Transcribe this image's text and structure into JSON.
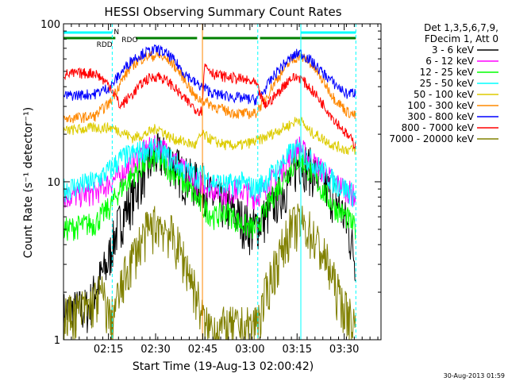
{
  "chart_data": {
    "type": "line",
    "title": "HESSI Observing Summary Count Rates",
    "xlabel": "Start Time (19-Aug-13 02:00:42)",
    "ylabel": "Count Rate (s⁻¹ detector⁻¹)",
    "x_range_minutes": [
      0,
      101
    ],
    "x_tick_labels": [
      "02:15",
      "02:30",
      "02:45",
      "03:00",
      "03:15",
      "03:30"
    ],
    "x_tick_minutes": [
      14.3,
      29.3,
      44.3,
      59.3,
      74.3,
      89.3
    ],
    "y_scale": "log",
    "ylim": [
      1,
      100
    ],
    "y_tick_labels": [
      "1",
      "10",
      "100"
    ],
    "legend_position": "right",
    "legend_header": [
      "Det 1,3,5,6,7,9,",
      "FDecim 1, Att 0"
    ],
    "series": [
      {
        "name": "3 - 6 keV",
        "color": "#000000",
        "x": [
          0,
          8,
          14,
          17,
          22,
          26,
          30,
          34,
          38,
          42,
          44,
          47,
          52,
          56,
          60,
          64,
          68,
          72,
          75,
          79,
          84,
          88,
          93
        ],
        "y": [
          1.5,
          1.6,
          3,
          5,
          8,
          12,
          15,
          14,
          11,
          10,
          10,
          8,
          7,
          6,
          5,
          6,
          8,
          10,
          14,
          12,
          9,
          7,
          3
        ]
      },
      {
        "name": "6 - 12 keV",
        "color": "#ff00ff",
        "x": [
          0,
          10,
          15,
          18,
          22,
          26,
          30,
          34,
          38,
          42,
          44,
          48,
          52,
          56,
          61,
          64,
          68,
          72,
          75,
          78,
          82,
          86,
          90,
          93
        ],
        "y": [
          8,
          8.5,
          10,
          11,
          13,
          16,
          17,
          15,
          12,
          10,
          10,
          9,
          8.5,
          9,
          8,
          9,
          11,
          14,
          17,
          14,
          12,
          10,
          9,
          8
        ]
      },
      {
        "name": "12 - 25 keV",
        "color": "#00ff00",
        "x": [
          0,
          10,
          15,
          18,
          22,
          26,
          30,
          34,
          38,
          42,
          44,
          48,
          52,
          56,
          61,
          64,
          68,
          72,
          75,
          78,
          82,
          86,
          90,
          93
        ],
        "y": [
          5,
          5.5,
          7,
          9,
          11,
          13,
          14,
          12,
          10,
          8,
          7,
          6,
          6.5,
          5.5,
          5,
          6.5,
          9,
          12,
          14,
          12,
          9,
          7,
          6,
          5
        ]
      },
      {
        "name": "25 - 50 keV",
        "color": "#00ffff",
        "x": [
          0,
          10,
          15,
          18,
          22,
          26,
          30,
          34,
          38,
          42,
          44,
          48,
          52,
          56,
          61,
          64,
          68,
          72,
          75,
          78,
          82,
          86,
          90,
          93
        ],
        "y": [
          9,
          10,
          12,
          14,
          15,
          16,
          16,
          14,
          12,
          11,
          11,
          10,
          9.5,
          10,
          9,
          10,
          12,
          15,
          16,
          14,
          12,
          10,
          9,
          8
        ]
      },
      {
        "name": "50 - 100 keV",
        "color": "#ddcc00",
        "x": [
          0,
          10,
          15,
          18,
          22,
          26,
          30,
          34,
          38,
          42,
          44,
          48,
          52,
          56,
          61,
          64,
          68,
          72,
          75,
          78,
          82,
          86,
          90,
          93
        ],
        "y": [
          21,
          22,
          22,
          21,
          19,
          20,
          22,
          19,
          18,
          17,
          20,
          18,
          17,
          17,
          18,
          19,
          21,
          23,
          25,
          21,
          19,
          17,
          16,
          16
        ]
      },
      {
        "name": "100 - 300 keV",
        "color": "#ff8800",
        "x": [
          0,
          10,
          15,
          18,
          22,
          26,
          30,
          34,
          38,
          42,
          44,
          48,
          52,
          56,
          61,
          64,
          68,
          72,
          75,
          78,
          82,
          86,
          90,
          93
        ],
        "y": [
          25,
          26,
          32,
          42,
          55,
          62,
          63,
          58,
          46,
          34,
          33,
          30,
          28,
          27,
          27,
          33,
          45,
          57,
          63,
          58,
          45,
          34,
          28,
          26
        ]
      },
      {
        "name": "300 - 800 keV",
        "color": "#0000ff",
        "x": [
          0,
          10,
          15,
          18,
          22,
          26,
          30,
          34,
          38,
          42,
          44,
          48,
          52,
          56,
          61,
          64,
          68,
          72,
          75,
          78,
          82,
          86,
          90,
          93
        ],
        "y": [
          35,
          36,
          40,
          48,
          60,
          66,
          69,
          62,
          50,
          42,
          40,
          36,
          35,
          34,
          33,
          38,
          50,
          60,
          66,
          60,
          50,
          42,
          36,
          37
        ]
      },
      {
        "name": "800 - 7000 keV",
        "color": "#ff0000",
        "x": [
          0,
          10,
          15,
          18,
          22,
          26,
          30,
          34,
          38,
          42,
          44,
          45,
          48,
          52,
          56,
          61,
          64,
          68,
          72,
          75,
          78,
          82,
          86,
          90,
          93
        ],
        "y": [
          48,
          49,
          40,
          30,
          36,
          44,
          47,
          42,
          34,
          29,
          28,
          55,
          48,
          46,
          45,
          42,
          30,
          36,
          45,
          46,
          40,
          32,
          25,
          20,
          17
        ]
      },
      {
        "name": "7000 - 20000 keV",
        "color": "#808000",
        "x": [
          0,
          8,
          12,
          15,
          18,
          21,
          24,
          27,
          30,
          33,
          36,
          39,
          42,
          45,
          50,
          55,
          60,
          63,
          66,
          69,
          72,
          75,
          78,
          81,
          84,
          87,
          90,
          93
        ],
        "y": [
          1.4,
          1.6,
          2,
          1.3,
          2,
          3,
          4,
          5,
          5.5,
          5,
          4,
          3,
          2,
          1.2,
          1.2,
          1.2,
          1.2,
          1.5,
          2.5,
          3.5,
          5,
          5.5,
          5,
          4,
          3,
          2,
          1.5,
          1.2
        ]
      }
    ],
    "annotations": {
      "rdd_label": "RDD",
      "rdo_label": "RDO",
      "n_label": "N",
      "saa_segments_cyan": [
        [
          0,
          15.5
        ],
        [
          75.5,
          93
        ]
      ],
      "night_segments_green": [
        [
          0,
          16.5
        ],
        [
          23,
          42.5
        ],
        [
          44.2,
          61.8
        ],
        [
          62.5,
          93
        ]
      ],
      "vlines_cyan_dashed": [
        15.5,
        61.8,
        93
      ],
      "vlines_cyan_solid": [
        75.5
      ],
      "vlines_orange": [
        44.2
      ]
    },
    "timestamp": "30-Aug-2013 01:59"
  }
}
